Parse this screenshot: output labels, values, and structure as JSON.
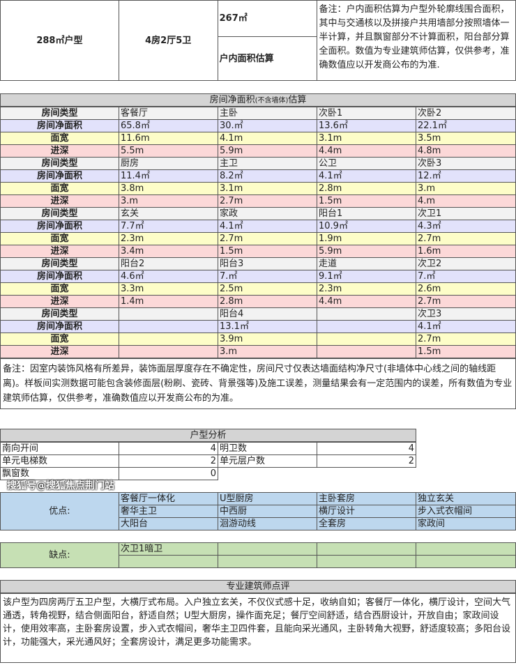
{
  "top": {
    "unit_type": "288㎡户型",
    "layout": "4房2厅5卫",
    "indoor_area": "267㎡",
    "indoor_area_label": "户内面积估算",
    "note": "备注：户内面积估算为户型外轮廓线围合面积，其中与交通核以及拼接户共用墙部分按照墙体一半计算，并且飘窗部分不计算面积，阳台部分算全面积。数值为专业建筑师估算，仅供参考，准确数值应以开发商公布的为准."
  },
  "rooms": {
    "title": "房间净面积",
    "title_small": "(不含墙体)",
    "title_end": "估算",
    "labels": {
      "type": "房间类型",
      "area": "房间净面积",
      "width": "面宽",
      "depth": "进深"
    },
    "groups": [
      {
        "type": [
          "客餐厅",
          "主卧",
          "次卧1",
          "次卧2"
        ],
        "area": [
          "65.8㎡",
          "30.㎡",
          "13.6㎡",
          "22.1㎡"
        ],
        "width": [
          "11.6m",
          "4.1m",
          "3.1m",
          "3.5m"
        ],
        "depth": [
          "5.5m",
          "5.9m",
          "4.4m",
          "4.8m"
        ]
      },
      {
        "type": [
          "厨房",
          "主卫",
          "公卫",
          "次卧3"
        ],
        "area": [
          "11.4㎡",
          "8.2㎡",
          "4.1㎡",
          "12.㎡"
        ],
        "width": [
          "3.8m",
          "3.1m",
          "2.8m",
          "3.m"
        ],
        "depth": [
          "3.m",
          "2.7m",
          "1.5m",
          "4.m"
        ]
      },
      {
        "type": [
          "玄关",
          "家政",
          "阳台1",
          "次卫1"
        ],
        "area": [
          "7.7㎡",
          "4.1㎡",
          "10.9㎡",
          "4.3㎡"
        ],
        "width": [
          "2.3m",
          "2.7m",
          "1.9m",
          "2.7m"
        ],
        "depth": [
          "3.4m",
          "1.5m",
          "5.9m",
          "1.6m"
        ]
      },
      {
        "type": [
          "阳台2",
          "阳台3",
          "走道",
          "次卫2"
        ],
        "area": [
          "4.6㎡",
          "7.㎡",
          "9.1㎡",
          "7.㎡"
        ],
        "width": [
          "3.3m",
          "2.5m",
          "2.3m",
          "2.6m"
        ],
        "depth": [
          "1.4m",
          "2.8m",
          "4.4m",
          "2.7m"
        ]
      },
      {
        "type": [
          "",
          "阳台4",
          "",
          "次卫3"
        ],
        "area": [
          "",
          "13.1㎡",
          "",
          "4.1㎡"
        ],
        "width": [
          "",
          "3.9m",
          "",
          "2.7m"
        ],
        "depth": [
          "",
          "3.m",
          "",
          "1.5m"
        ]
      }
    ],
    "note": "备注：因室内装饰风格有所差异，装饰面层厚度存在不确定性，房间尺寸仅表达墙面结构净尺寸(非墙体中心线之间的轴线距离)。样板间实测数据可能包含装修面层(粉刷、瓷砖、背景强等)及施工误差，测量结果会有一定范围内的误差，所有数值为专业建筑师估算，仅供参考，准确数值应以开发商公布的为准。"
  },
  "analysis": {
    "title": "户型分析",
    "rows": [
      [
        "南向开间",
        "4",
        "明卫数",
        "4"
      ],
      [
        "单元电梯数",
        "2",
        "单元层户数",
        "2"
      ],
      [
        "飘窗数",
        "0",
        "",
        ""
      ]
    ]
  },
  "pros": {
    "label": "优点:",
    "items": [
      [
        "客餐厅一体化",
        "U型厨房",
        "主卧套房",
        "独立玄关"
      ],
      [
        "奢华主卫",
        "中西厨",
        "横厅设计",
        "步入式衣帽间"
      ],
      [
        "大阳台",
        "洄游动线",
        "全套房",
        "家政间"
      ]
    ]
  },
  "cons": {
    "label": "缺点:",
    "items": [
      [
        "次卫1暗卫",
        "",
        "",
        ""
      ],
      [
        "",
        "",
        "",
        ""
      ]
    ]
  },
  "review": {
    "title": "专业建筑师点评",
    "text": "该户型为四房两厅五卫户型，大横厅式布局。入户独立玄关，不仅仪式感十足，收纳自如；客餐厅一体化，横厅设计，空间大气通透，转角视野，结合侧面阳台，舒适自然；U型大厨房，操作面充足；餐厅空间舒适，结合西厨设计，开放自由；家政间设计，使用效率高，主卧套房设置，步入式衣帽间，奢华主卫四件套，且能向采光通风，主卧转角大视野，舒适度较高；多阳台设计，功能强大，采光通风好；全套房设计，满足更多功能需求。"
  },
  "watermark": "搜狐号@搜狐焦点荆门站"
}
